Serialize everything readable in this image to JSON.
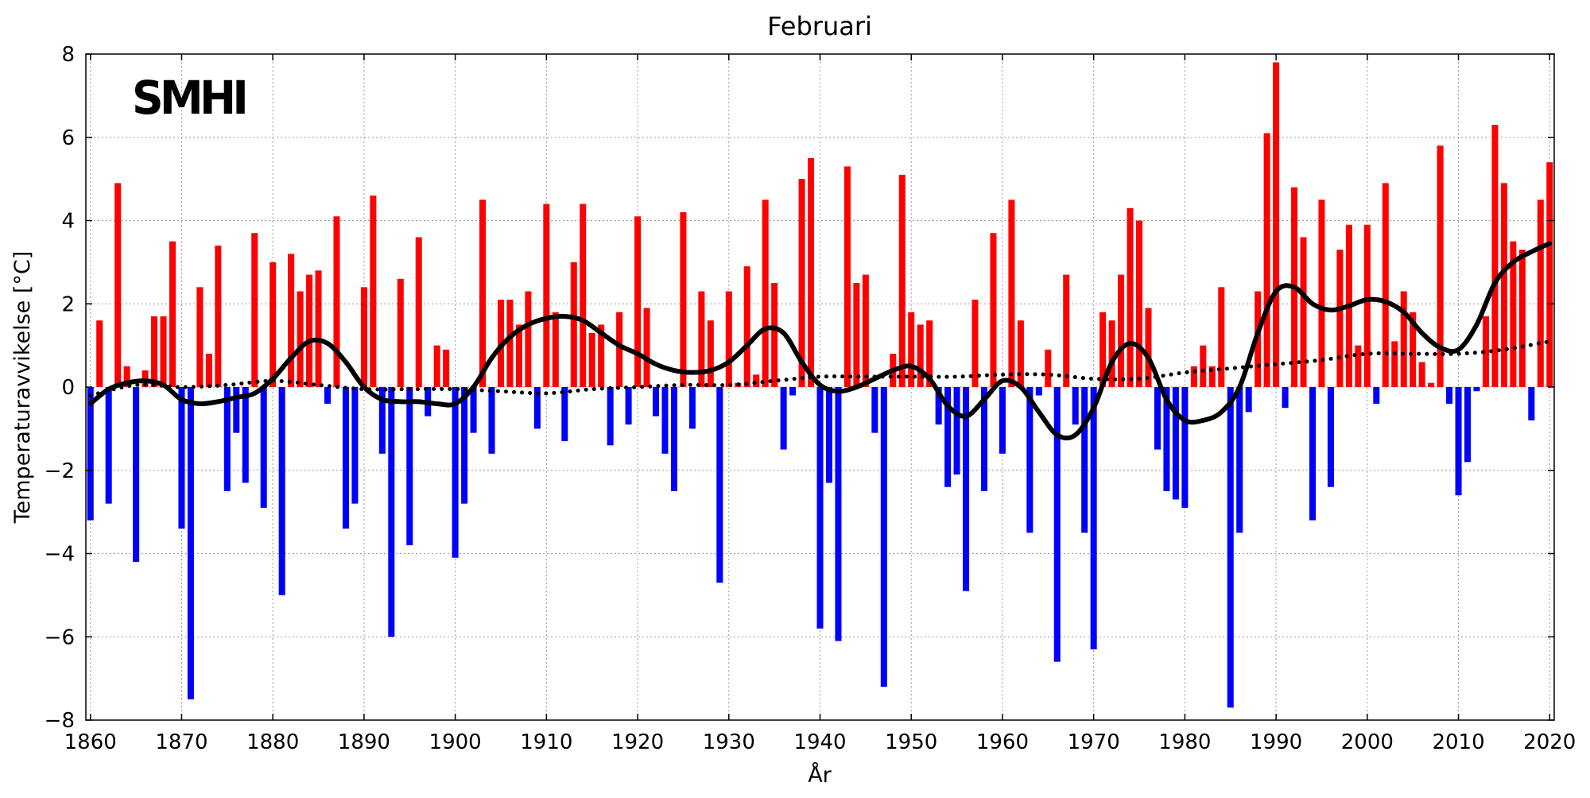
{
  "chart_data": {
    "type": "bar",
    "title": "Februari",
    "xlabel": "År",
    "ylabel": "Temperaturavvikelse [°C]",
    "logo": "SMHI",
    "xlim": [
      1859.5,
      2020.5
    ],
    "ylim": [
      -8,
      8
    ],
    "xticks": [
      1860,
      1870,
      1880,
      1890,
      1900,
      1910,
      1920,
      1930,
      1940,
      1950,
      1960,
      1970,
      1980,
      1990,
      2000,
      2010,
      2020
    ],
    "yticks": [
      -8,
      -6,
      -4,
      -2,
      0,
      2,
      4,
      6,
      8
    ],
    "grid": true,
    "colors": {
      "positive": "#ff0000",
      "negative": "#0000ff",
      "smooth": "#000000",
      "trend": "#000000"
    },
    "x": [
      1860,
      1861,
      1862,
      1863,
      1864,
      1865,
      1866,
      1867,
      1868,
      1869,
      1870,
      1871,
      1872,
      1873,
      1874,
      1875,
      1876,
      1877,
      1878,
      1879,
      1880,
      1881,
      1882,
      1883,
      1884,
      1885,
      1886,
      1887,
      1888,
      1889,
      1890,
      1891,
      1892,
      1893,
      1894,
      1895,
      1896,
      1897,
      1898,
      1899,
      1900,
      1901,
      1902,
      1903,
      1904,
      1905,
      1906,
      1907,
      1908,
      1909,
      1910,
      1911,
      1912,
      1913,
      1914,
      1915,
      1916,
      1917,
      1918,
      1919,
      1920,
      1921,
      1922,
      1923,
      1924,
      1925,
      1926,
      1927,
      1928,
      1929,
      1930,
      1931,
      1932,
      1933,
      1934,
      1935,
      1936,
      1937,
      1938,
      1939,
      1940,
      1941,
      1942,
      1943,
      1944,
      1945,
      1946,
      1947,
      1948,
      1949,
      1950,
      1951,
      1952,
      1953,
      1954,
      1955,
      1956,
      1957,
      1958,
      1959,
      1960,
      1961,
      1962,
      1963,
      1964,
      1965,
      1966,
      1967,
      1968,
      1969,
      1970,
      1971,
      1972,
      1973,
      1974,
      1975,
      1976,
      1977,
      1978,
      1979,
      1980,
      1981,
      1982,
      1983,
      1984,
      1985,
      1986,
      1987,
      1988,
      1989,
      1990,
      1991,
      1992,
      1993,
      1994,
      1995,
      1996,
      1997,
      1998,
      1999,
      2000,
      2001,
      2002,
      2003,
      2004,
      2005,
      2006,
      2007,
      2008,
      2009,
      2010,
      2011,
      2012,
      2013,
      2014,
      2015,
      2016,
      2017,
      2018,
      2019,
      2020
    ],
    "values": [
      -3.2,
      1.6,
      -2.8,
      4.9,
      0.5,
      -4.2,
      0.4,
      1.7,
      1.7,
      3.5,
      -3.4,
      -7.5,
      2.4,
      0.8,
      3.4,
      -2.5,
      -1.1,
      -2.3,
      3.7,
      -2.9,
      3.0,
      -5.0,
      3.2,
      2.3,
      2.7,
      2.8,
      -0.4,
      4.1,
      -3.4,
      -2.8,
      2.4,
      4.6,
      -1.6,
      -6.0,
      2.6,
      -3.8,
      3.6,
      -0.7,
      1.0,
      0.9,
      -4.1,
      -2.8,
      -1.1,
      4.5,
      -1.6,
      2.1,
      2.1,
      1.5,
      2.3,
      -1.0,
      4.4,
      1.8,
      -1.3,
      3.0,
      4.4,
      1.3,
      1.5,
      -1.4,
      1.8,
      -0.9,
      4.1,
      1.9,
      -0.7,
      -1.6,
      -2.5,
      4.2,
      -1.0,
      2.3,
      1.6,
      -4.7,
      2.3,
      0.1,
      2.9,
      0.3,
      4.5,
      2.5,
      -1.5,
      -0.2,
      5.0,
      5.5,
      -5.8,
      -2.3,
      -6.1,
      5.3,
      2.5,
      2.7,
      -1.1,
      -7.2,
      0.8,
      5.1,
      1.8,
      1.5,
      1.6,
      -0.9,
      -2.4,
      -2.1,
      -4.9,
      2.1,
      -2.5,
      3.7,
      -1.6,
      4.5,
      1.6,
      -3.5,
      -0.2,
      0.9,
      -6.6,
      2.7,
      -0.9,
      -3.5,
      -6.3,
      1.8,
      1.6,
      2.7,
      4.3,
      4.0,
      1.9,
      -1.5,
      -2.5,
      -2.7,
      -2.9,
      0.5,
      1.0,
      0.5,
      2.4,
      -7.7,
      -3.5,
      -0.6,
      2.3,
      6.1,
      7.8,
      -0.5,
      4.8,
      3.6,
      -3.2,
      4.5,
      -2.4,
      3.3,
      3.9,
      1.0,
      3.9,
      -0.4,
      4.9,
      1.1,
      2.3,
      1.8,
      0.6,
      0.1,
      5.8,
      -0.4,
      -2.6,
      -1.8,
      -0.1,
      1.7,
      6.3,
      4.9,
      3.5,
      3.3,
      -0.8,
      4.5,
      5.4
    ],
    "smooth": {
      "name": "",
      "x": [
        1860,
        1862,
        1864,
        1866,
        1868,
        1870,
        1872,
        1874,
        1876,
        1878,
        1880,
        1882,
        1884,
        1886,
        1888,
        1890,
        1892,
        1894,
        1896,
        1898,
        1900,
        1902,
        1904,
        1906,
        1908,
        1910,
        1912,
        1914,
        1916,
        1918,
        1920,
        1922,
        1924,
        1926,
        1928,
        1930,
        1932,
        1934,
        1936,
        1938,
        1940,
        1942,
        1944,
        1946,
        1948,
        1950,
        1952,
        1954,
        1956,
        1958,
        1960,
        1962,
        1964,
        1966,
        1968,
        1970,
        1972,
        1974,
        1976,
        1978,
        1980,
        1982,
        1984,
        1986,
        1988,
        1990,
        1992,
        1994,
        1996,
        1998,
        2000,
        2002,
        2004,
        2006,
        2008,
        2010,
        2012,
        2014,
        2016,
        2018,
        2020
      ],
      "values": [
        -0.4,
        -0.05,
        0.1,
        0.15,
        0.05,
        -0.3,
        -0.4,
        -0.35,
        -0.25,
        -0.15,
        0.2,
        0.7,
        1.1,
        1.05,
        0.6,
        0.0,
        -0.3,
        -0.35,
        -0.35,
        -0.4,
        -0.4,
        0.0,
        0.7,
        1.2,
        1.5,
        1.65,
        1.7,
        1.6,
        1.3,
        1.0,
        0.8,
        0.55,
        0.4,
        0.35,
        0.4,
        0.6,
        1.0,
        1.4,
        1.3,
        0.6,
        0.05,
        -0.1,
        0.0,
        0.2,
        0.4,
        0.5,
        0.2,
        -0.45,
        -0.7,
        -0.3,
        0.15,
        0.0,
        -0.6,
        -1.15,
        -1.15,
        -0.5,
        0.6,
        1.05,
        0.7,
        -0.3,
        -0.8,
        -0.8,
        -0.6,
        0.0,
        1.3,
        2.3,
        2.4,
        2.0,
        1.85,
        1.95,
        2.1,
        2.05,
        1.8,
        1.3,
        0.95,
        0.9,
        1.5,
        2.5,
        3.0,
        3.25,
        3.45
      ]
    },
    "trend": {
      "name": "",
      "x": [
        1860,
        1865,
        1870,
        1875,
        1880,
        1885,
        1890,
        1895,
        1900,
        1905,
        1910,
        1915,
        1920,
        1925,
        1930,
        1935,
        1940,
        1945,
        1950,
        1955,
        1960,
        1965,
        1970,
        1975,
        1980,
        1985,
        1990,
        1995,
        2000,
        2005,
        2010,
        2015,
        2020
      ],
      "values": [
        -0.2,
        0.05,
        0.0,
        0.05,
        0.15,
        0.05,
        -0.05,
        -0.05,
        -0.05,
        -0.1,
        -0.15,
        -0.05,
        0.0,
        0.05,
        0.05,
        0.15,
        0.25,
        0.25,
        0.25,
        0.25,
        0.3,
        0.3,
        0.2,
        0.2,
        0.35,
        0.45,
        0.55,
        0.65,
        0.8,
        0.8,
        0.8,
        0.9,
        1.1
      ]
    }
  }
}
